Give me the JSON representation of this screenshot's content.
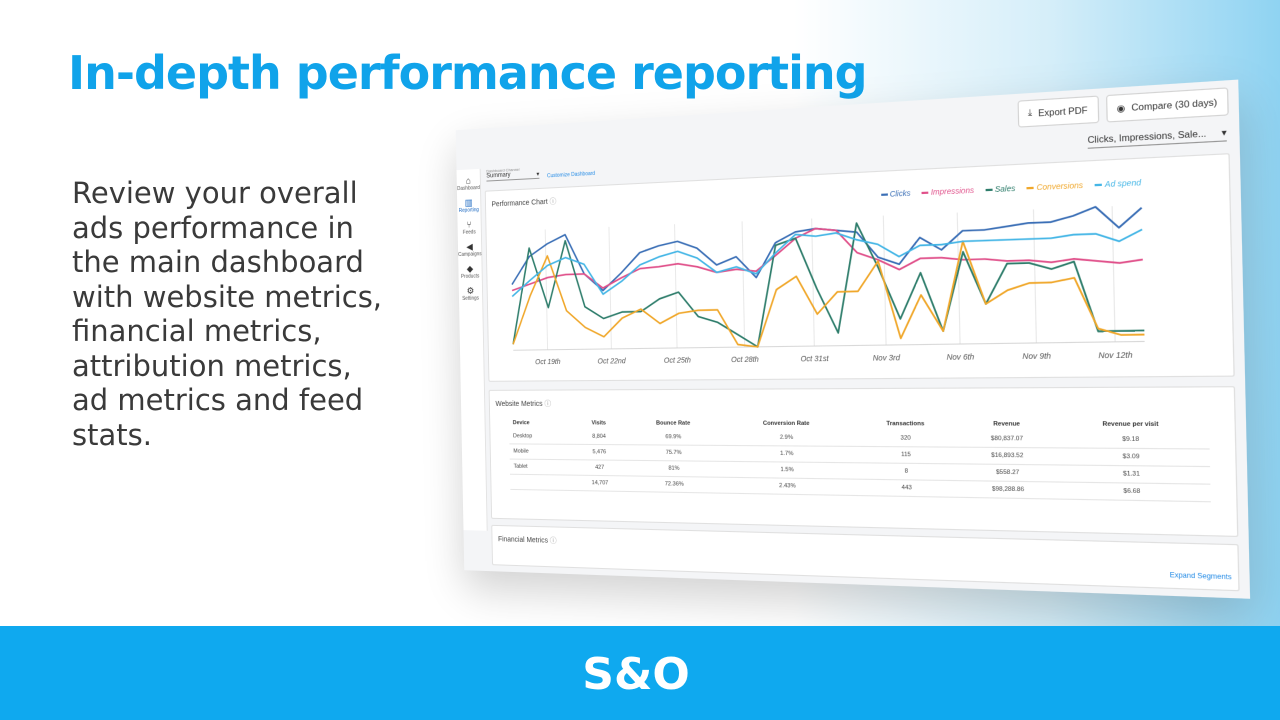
{
  "headline": "In-depth performance reporting",
  "body_lines": [
    "Review your overall",
    "ads performance in",
    "the main dashboard",
    "with website metrics,",
    "financial metrics,",
    "attribution metrics,",
    "ad metrics and feed",
    "stats."
  ],
  "brand_logo": {
    "text": "S&O",
    "color": "#0fa9ef"
  },
  "dashboard": {
    "export_button": "Export PDF",
    "compare_button": "Compare (30 days)",
    "channel_caption": "Dashboard Channel",
    "channel_value": "Summary",
    "customize_link": "Customize Dashboard",
    "metric_select": "Clicks, Impressions, Sale...",
    "sidebar": [
      {
        "icon": "home-icon",
        "glyph": "⌂",
        "label": "Dashboard"
      },
      {
        "icon": "bar-chart-icon",
        "glyph": "▥",
        "label": "Reporting"
      },
      {
        "icon": "feeds-icon",
        "glyph": "⑂",
        "label": "Feeds"
      },
      {
        "icon": "megaphone-icon",
        "glyph": "◀",
        "label": "Campaigns"
      },
      {
        "icon": "tag-icon",
        "glyph": "◆",
        "label": "Products"
      },
      {
        "icon": "gear-icon",
        "glyph": "⚙",
        "label": "Settings"
      }
    ],
    "chart_title": "Performance Chart",
    "website_metrics_title": "Website Metrics",
    "financial_metrics_title": "Financial Metrics",
    "expand_segments": "Expand Segments",
    "table": {
      "headers": [
        "Device",
        "Visits",
        "Bounce Rate",
        "Conversion Rate",
        "Transactions",
        "Revenue",
        "Revenue per visit"
      ],
      "rows": [
        [
          "Desktop",
          "8,804",
          "69.9%",
          "2.9%",
          "320",
          "$80,837.07",
          "$9.18"
        ],
        [
          "Mobile",
          "5,476",
          "75.7%",
          "1.7%",
          "115",
          "$16,893.52",
          "$3.09"
        ],
        [
          "Tablet",
          "427",
          "81%",
          "1.5%",
          "8",
          "$558.27",
          "$1.31"
        ],
        [
          "",
          "14,707",
          "72.36%",
          "2.43%",
          "443",
          "$98,288.86",
          "$6.68"
        ]
      ]
    }
  },
  "chart_data": {
    "type": "line",
    "x_tick_labels": [
      "Oct 19th",
      "Oct 22nd",
      "Oct 25th",
      "Oct 28th",
      "Oct 31st",
      "Nov 3rd",
      "Nov 6th",
      "Nov 9th",
      "Nov 12th"
    ],
    "series": [
      {
        "name": "Clicks",
        "color": "#3b6fb6",
        "values": [
          0.55,
          0.78,
          0.88,
          0.95,
          0.62,
          0.48,
          0.62,
          0.78,
          0.83,
          0.86,
          0.8,
          0.66,
          0.72,
          0.55,
          0.82,
          0.9,
          0.92,
          0.9,
          0.88,
          0.68,
          0.62,
          0.82,
          0.72,
          0.86,
          0.86,
          0.88,
          0.9,
          0.9,
          0.94,
          1.0,
          0.84,
          0.98
        ]
      },
      {
        "name": "Impressions",
        "color": "#e0508a",
        "values": [
          0.5,
          0.55,
          0.6,
          0.62,
          0.62,
          0.5,
          0.58,
          0.65,
          0.66,
          0.68,
          0.65,
          0.6,
          0.62,
          0.6,
          0.72,
          0.85,
          0.92,
          0.9,
          0.72,
          0.66,
          0.58,
          0.66,
          0.66,
          0.64,
          0.64,
          0.62,
          0.62,
          0.6,
          0.62,
          0.6,
          0.58,
          0.6
        ]
      },
      {
        "name": "Sales",
        "color": "#2e7d6b",
        "values": [
          0.05,
          0.85,
          0.35,
          0.9,
          0.35,
          0.25,
          0.3,
          0.3,
          0.4,
          0.45,
          0.25,
          0.2,
          0.1,
          0.0,
          0.8,
          0.85,
          0.45,
          0.1,
          0.95,
          0.6,
          0.2,
          0.55,
          0.1,
          0.7,
          0.3,
          0.6,
          0.6,
          0.55,
          0.6,
          0.08,
          0.08,
          0.08
        ]
      },
      {
        "name": "Conversions",
        "color": "#f0a72a",
        "values": [
          0.05,
          0.45,
          0.78,
          0.32,
          0.18,
          0.1,
          0.25,
          0.32,
          0.2,
          0.28,
          0.3,
          0.3,
          0.02,
          0.0,
          0.45,
          0.55,
          0.25,
          0.42,
          0.42,
          0.65,
          0.05,
          0.38,
          0.1,
          0.78,
          0.3,
          0.4,
          0.45,
          0.45,
          0.48,
          0.1,
          0.05,
          0.05
        ]
      },
      {
        "name": "Ad spend",
        "color": "#45b6e6",
        "values": [
          0.45,
          0.58,
          0.7,
          0.76,
          0.7,
          0.45,
          0.55,
          0.68,
          0.74,
          0.78,
          0.72,
          0.6,
          0.64,
          0.58,
          0.74,
          0.88,
          0.86,
          0.88,
          0.82,
          0.78,
          0.68,
          0.76,
          0.76,
          0.78,
          0.78,
          0.78,
          0.78,
          0.78,
          0.8,
          0.8,
          0.74,
          0.82
        ]
      }
    ],
    "legend_position": "top-right",
    "grid": "vertical"
  }
}
